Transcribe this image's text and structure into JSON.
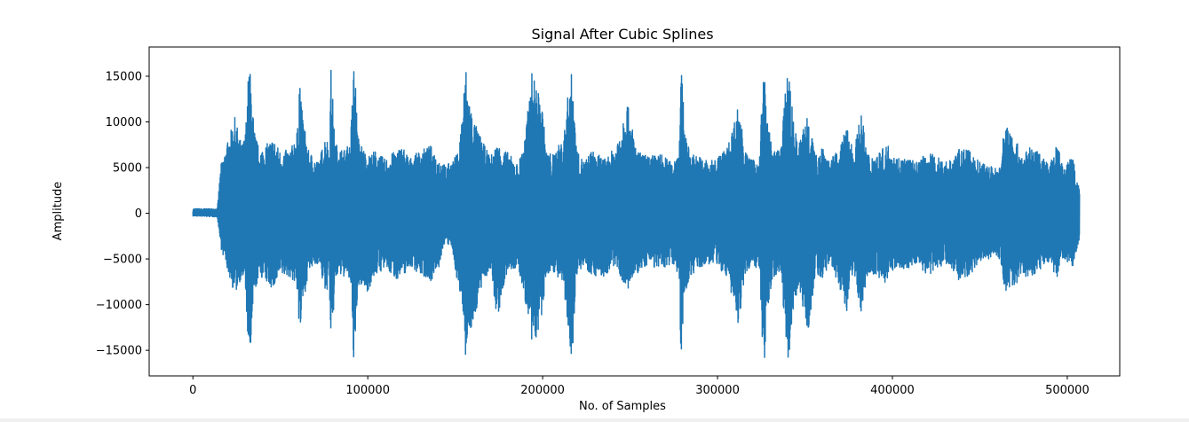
{
  "chart_data": {
    "type": "line",
    "title": "Signal After Cubic Splines",
    "xlabel": "No. of Samples",
    "ylabel": "Amplitude",
    "xlim": [
      -25000,
      530000
    ],
    "ylim": [
      -17800,
      18200
    ],
    "xticks": [
      0,
      100000,
      200000,
      300000,
      400000,
      500000
    ],
    "yticks": [
      -15000,
      -10000,
      -5000,
      0,
      5000,
      10000,
      15000
    ],
    "grid": false,
    "series": [
      {
        "color": "#1f77b4",
        "x": [
          0,
          14000,
          16000,
          24000,
          28000,
          30000,
          32000,
          33000,
          35000,
          38000,
          46000,
          50000,
          56000,
          60000,
          61000,
          62000,
          66000,
          72000,
          76000,
          78000,
          79000,
          80000,
          81000,
          82000,
          86000,
          90000,
          92000,
          93000,
          94000,
          95000,
          96000,
          100000,
          104000,
          110000,
          116000,
          120000,
          124000,
          130000,
          136000,
          140000,
          144000,
          148000,
          152000,
          155000,
          156000,
          157000,
          160000,
          166000,
          170000,
          174000,
          180000,
          186000,
          190000,
          194000,
          200000,
          202000,
          206000,
          212000,
          216000,
          218000,
          219000,
          220000,
          224000,
          228000,
          236000,
          242000,
          248000,
          254000,
          260000,
          268000,
          274000,
          278000,
          279000,
          280000,
          281000,
          284000,
          290000,
          296000,
          300000,
          306000,
          312000,
          316000,
          320000,
          324000,
          326000,
          327000,
          328000,
          332000,
          336000,
          340000,
          341000,
          342000,
          346000,
          352000,
          356000,
          360000,
          364000,
          370000,
          374000,
          378000,
          382000,
          386000,
          390000,
          394000,
          398000,
          402000,
          408000,
          414000,
          420000,
          426000,
          432000,
          438000,
          444000,
          450000,
          456000,
          460000,
          462000,
          464000,
          468000,
          474000,
          478000,
          484000,
          490000,
          494000,
          498000,
          503000,
          507000
        ],
        "upper": [
          500,
          500,
          5300,
          10500,
          7400,
          8800,
          16200,
          15200,
          9200,
          6900,
          8200,
          6800,
          7000,
          9400,
          16000,
          11800,
          6900,
          5600,
          8800,
          7100,
          16200,
          12400,
          8300,
          7600,
          6900,
          7600,
          16300,
          14600,
          9100,
          8000,
          7700,
          6200,
          6900,
          5900,
          6900,
          7400,
          6000,
          6900,
          7400,
          6200,
          5300,
          5600,
          6800,
          13500,
          16300,
          14000,
          10500,
          7700,
          6200,
          7600,
          6700,
          5300,
          8500,
          15700,
          11500,
          6800,
          6500,
          8300,
          16000,
          13000,
          8100,
          6600,
          5700,
          6900,
          5900,
          7500,
          12500,
          6800,
          6300,
          6500,
          5500,
          7100,
          16200,
          14000,
          9700,
          6700,
          6200,
          5700,
          6200,
          7400,
          12000,
          6700,
          5800,
          6100,
          15300,
          15200,
          10500,
          6700,
          7200,
          15800,
          16200,
          12500,
          7200,
          11600,
          6200,
          7800,
          5700,
          7200,
          9600,
          6800,
          11100,
          6600,
          6400,
          7000,
          7600,
          6200,
          6100,
          5600,
          6700,
          6200,
          5700,
          7000,
          6900,
          5600,
          5200,
          5000,
          5500,
          9800,
          9300,
          6400,
          7200,
          6800,
          5300,
          7500,
          5200,
          6300,
          2500
        ],
        "lower": [
          -300,
          -400,
          -3800,
          -9000,
          -6900,
          -8200,
          -16200,
          -15600,
          -9000,
          -6800,
          -8400,
          -6900,
          -7000,
          -8600,
          -15200,
          -11200,
          -6500,
          -5400,
          -9200,
          -7000,
          -16200,
          -13100,
          -8000,
          -7100,
          -6900,
          -7500,
          -16200,
          -15100,
          -9500,
          -8200,
          -7900,
          -8600,
          -6800,
          -6100,
          -7200,
          -7000,
          -5800,
          -6700,
          -7400,
          -6600,
          -3200,
          -3800,
          -8400,
          -11300,
          -16000,
          -13800,
          -12300,
          -7600,
          -6100,
          -11700,
          -6300,
          -6100,
          -9600,
          -15200,
          -11300,
          -6800,
          -6300,
          -8300,
          -16100,
          -13200,
          -8900,
          -6300,
          -5800,
          -6800,
          -7000,
          -5600,
          -8700,
          -6700,
          -5600,
          -6300,
          -5400,
          -6800,
          -15800,
          -13500,
          -9800,
          -6900,
          -6100,
          -5500,
          -5800,
          -7300,
          -12300,
          -6900,
          -5300,
          -6600,
          -16000,
          -16200,
          -11400,
          -7000,
          -6300,
          -15600,
          -16200,
          -12900,
          -7800,
          -13200,
          -6300,
          -7800,
          -5200,
          -8400,
          -10700,
          -6600,
          -10800,
          -6400,
          -6800,
          -7500,
          -7600,
          -5800,
          -6300,
          -5400,
          -6900,
          -6000,
          -5400,
          -7300,
          -7000,
          -5200,
          -5000,
          -4600,
          -5400,
          -8700,
          -8500,
          -6900,
          -7000,
          -6300,
          -5300,
          -7300,
          -5000,
          -5900,
          -2800
        ]
      }
    ]
  }
}
